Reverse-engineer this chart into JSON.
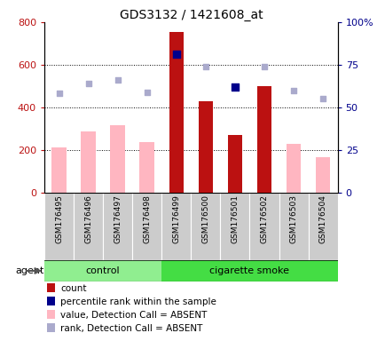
{
  "title": "GDS3132 / 1421608_at",
  "samples": [
    "GSM176495",
    "GSM176496",
    "GSM176497",
    "GSM176498",
    "GSM176499",
    "GSM176500",
    "GSM176501",
    "GSM176502",
    "GSM176503",
    "GSM176504"
  ],
  "groups": [
    "control",
    "control",
    "control",
    "control",
    "cigarette smoke",
    "cigarette smoke",
    "cigarette smoke",
    "cigarette smoke",
    "cigarette smoke",
    "cigarette smoke"
  ],
  "count_values": [
    null,
    null,
    null,
    null,
    755,
    430,
    270,
    498,
    null,
    null
  ],
  "count_absent": [
    210,
    285,
    315,
    237,
    null,
    null,
    null,
    null,
    228,
    165
  ],
  "rank_values_pct": [
    null,
    null,
    null,
    null,
    81,
    null,
    62,
    null,
    null,
    null
  ],
  "rank_absent_pct": [
    58,
    64,
    66,
    59,
    null,
    74,
    null,
    74,
    60,
    55
  ],
  "ylim_left": [
    0,
    800
  ],
  "ylim_right": [
    0,
    100
  ],
  "yticks_left": [
    0,
    200,
    400,
    600,
    800
  ],
  "ytick_labels_left": [
    "0",
    "200",
    "400",
    "600",
    "800"
  ],
  "yticks_right": [
    0,
    25,
    50,
    75,
    100
  ],
  "ytick_labels_right": [
    "0",
    "25",
    "50",
    "75",
    "100%"
  ],
  "bar_width": 0.5,
  "color_count": "#BB1111",
  "color_count_absent": "#FFB6C1",
  "color_rank": "#00008B",
  "color_rank_absent": "#AAAACC",
  "color_control": "#90EE90",
  "color_smoke": "#44DD44",
  "color_xtick_bg": "#CCCCCC",
  "legend_items": [
    {
      "label": "count",
      "color": "#BB1111"
    },
    {
      "label": "percentile rank within the sample",
      "color": "#00008B"
    },
    {
      "label": "value, Detection Call = ABSENT",
      "color": "#FFB6C1"
    },
    {
      "label": "rank, Detection Call = ABSENT",
      "color": "#AAAACC"
    }
  ],
  "agent_label": "agent",
  "control_label": "control",
  "smoke_label": "cigarette smoke",
  "n_control": 4,
  "n_samples": 10
}
